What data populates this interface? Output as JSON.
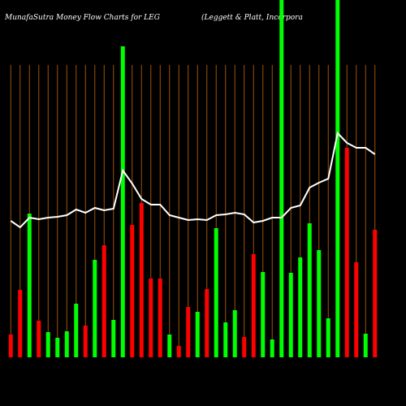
{
  "chart_data": {
    "type": "bar",
    "title": "MunafaSutra  Money Flow  Charts for LEG",
    "subtitle": "(Leggett & Platt, Incorpora",
    "categories": [
      null,
      null,
      null,
      null,
      null,
      null,
      null,
      null,
      null,
      null,
      null,
      null,
      null,
      null,
      null,
      null,
      null,
      null,
      null,
      null,
      null,
      null,
      null,
      null,
      null,
      null,
      null,
      null,
      null,
      null,
      null,
      null,
      null,
      null,
      null,
      null,
      null,
      null,
      null,
      null
    ],
    "values": [
      28,
      83,
      177,
      45,
      31,
      24,
      32,
      66,
      39,
      120,
      138,
      46,
      383,
      163,
      190,
      97,
      97,
      28,
      14,
      62,
      56,
      84,
      159,
      43,
      58,
      25,
      127,
      105,
      22,
      450,
      104,
      123,
      165,
      132,
      48,
      450,
      258,
      117,
      29,
      157
    ],
    "colors": [
      "#ff0000",
      "#ff0000",
      "#00ff00",
      "#ff0000",
      "#00ff00",
      "#00ff00",
      "#00ff00",
      "#00ff00",
      "#ff0000",
      "#00ff00",
      "#ff0000",
      "#00ff00",
      "#00ff00",
      "#ff0000",
      "#ff0000",
      "#ff0000",
      "#ff0000",
      "#00ff00",
      "#ff0000",
      "#ff0000",
      "#00ff00",
      "#ff0000",
      "#00ff00",
      "#00ff00",
      "#00ff00",
      "#ff0000",
      "#ff0000",
      "#00ff00",
      "#00ff00",
      "#00ff00",
      "#00ff00",
      "#00ff00",
      "#00ff00",
      "#00ff00",
      "#00ff00",
      "#00ff00",
      "#ff0000",
      "#ff0000",
      "#00ff00",
      "#ff0000"
    ],
    "line_values": [
      168,
      160,
      172,
      170,
      172,
      173,
      175,
      182,
      178,
      184,
      181,
      183,
      230,
      214,
      195,
      188,
      188,
      175,
      172,
      169,
      170,
      169,
      175,
      176,
      178,
      176,
      166,
      168,
      172,
      172,
      184,
      187,
      209,
      215,
      220,
      276,
      264,
      258,
      258,
      250
    ],
    "line_color": "#ffffff",
    "grid_color": "#a0520a",
    "ylim": [
      0,
      440
    ]
  }
}
